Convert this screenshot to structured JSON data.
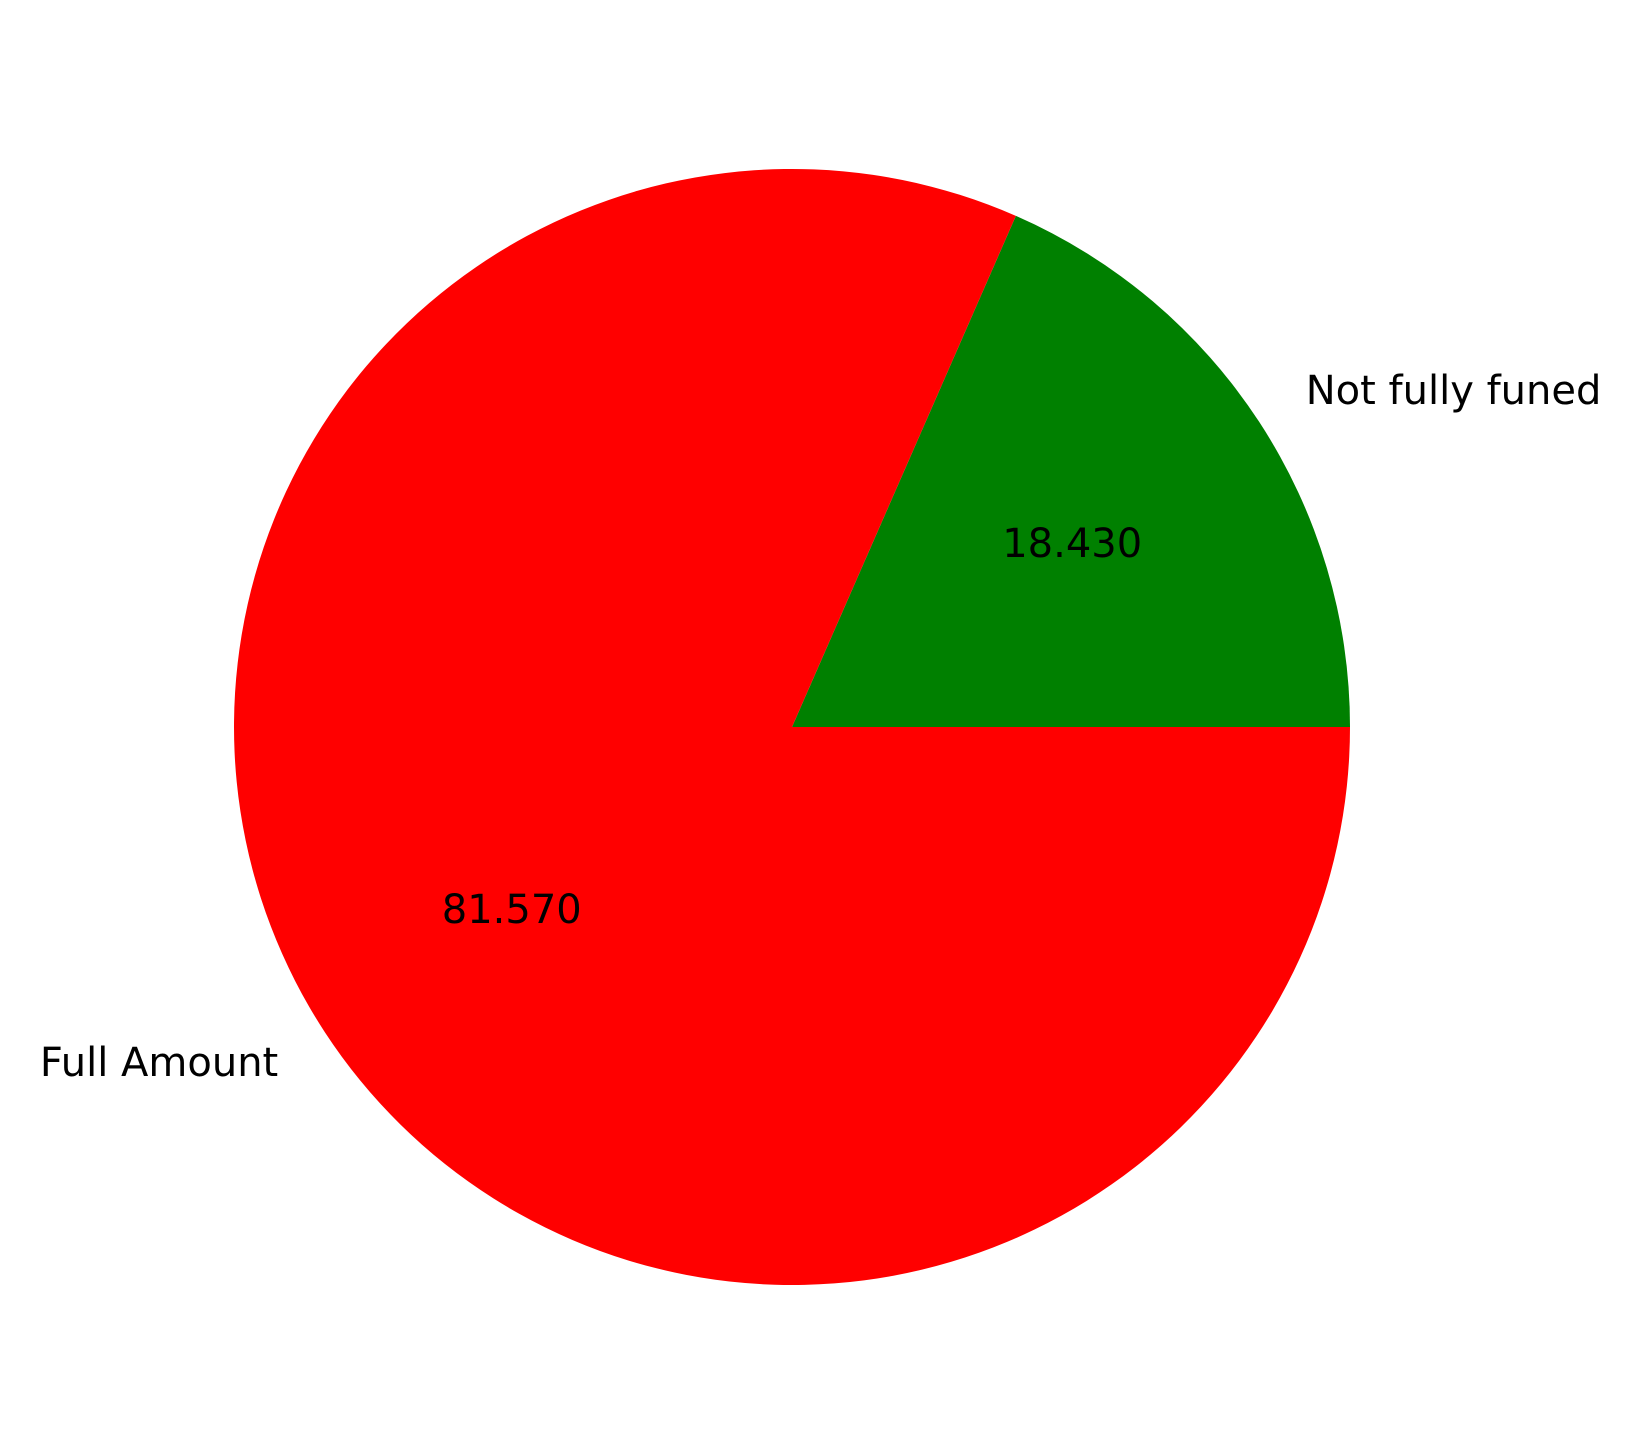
{
  "chart_data": {
    "type": "pie",
    "title": "",
    "slices": [
      {
        "label": "Not fully funed",
        "value": 18.43,
        "display": "18.430",
        "color": "#008000"
      },
      {
        "label": "Full Amount",
        "value": 81.57,
        "display": "81.570",
        "color": "#ff0000"
      }
    ],
    "start_angle_deg": 0,
    "direction": "counterclockwise",
    "legend": "none"
  }
}
